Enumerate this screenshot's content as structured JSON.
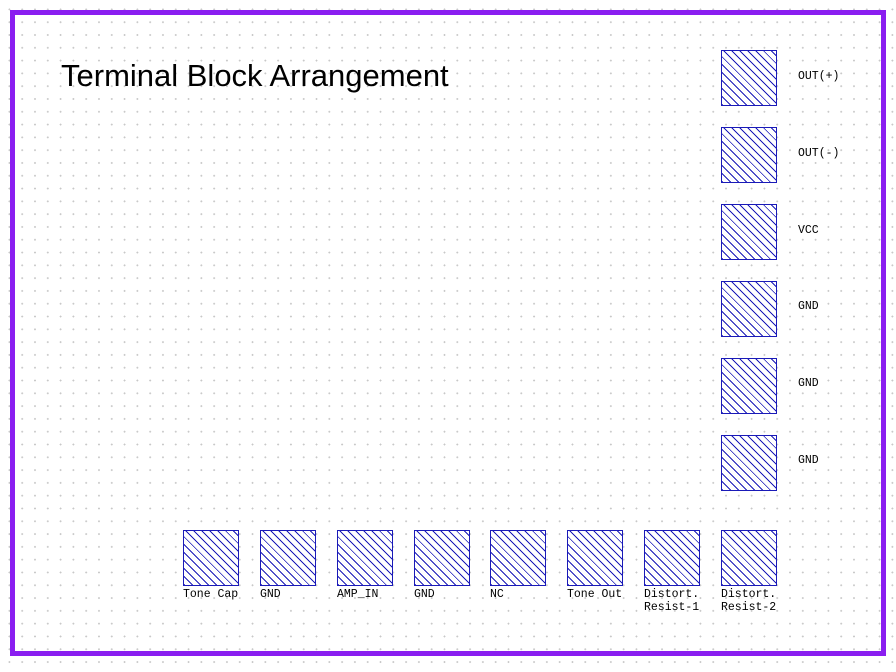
{
  "title": "Terminal Block Arrangement",
  "colors": {
    "frame": "#8a1ef0",
    "pad_stroke": "#1a1ab8",
    "grid_dot": "#c8c8c8"
  },
  "right_column": [
    {
      "label": "OUT(+)"
    },
    {
      "label": "OUT(-)"
    },
    {
      "label": "VCC"
    },
    {
      "label": "GND"
    },
    {
      "label": "GND"
    },
    {
      "label": "GND"
    }
  ],
  "bottom_row": [
    {
      "label": "Tone Cap"
    },
    {
      "label": "GND"
    },
    {
      "label": "AMP_IN"
    },
    {
      "label": "GND"
    },
    {
      "label": "NC"
    },
    {
      "label": "Tone Out"
    },
    {
      "label": "Distort.\nResist-1"
    },
    {
      "label": "Distort.\nResist-2"
    }
  ]
}
